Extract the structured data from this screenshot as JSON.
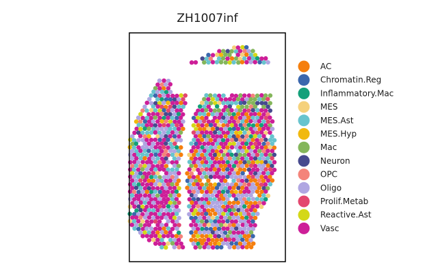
{
  "chart_data": {
    "type": "scatter",
    "title": "ZH1007inf",
    "xlabel": "",
    "ylabel": "",
    "grid": false,
    "axes_ticks": false,
    "legend_position": "right",
    "categories": [
      {
        "name": "AC",
        "color": "#f57f0e"
      },
      {
        "name": "Chromatin.Reg",
        "color": "#3b67ad"
      },
      {
        "name": "Inflammatory.Mac",
        "color": "#14a07a"
      },
      {
        "name": "MES",
        "color": "#f5d17c"
      },
      {
        "name": "MES.Ast",
        "color": "#68c4ce"
      },
      {
        "name": "MES.Hyp",
        "color": "#f1b90e"
      },
      {
        "name": "Mac",
        "color": "#84b65b"
      },
      {
        "name": "Neuron",
        "color": "#474a8e"
      },
      {
        "name": "OPC",
        "color": "#f4847a"
      },
      {
        "name": "Oligo",
        "color": "#b0a6e2"
      },
      {
        "name": "Prolif.Metab",
        "color": "#e3476f"
      },
      {
        "name": "Reactive.Ast",
        "color": "#d4d818"
      },
      {
        "name": "Vasc",
        "color": "#cd1f98"
      }
    ]
  }
}
